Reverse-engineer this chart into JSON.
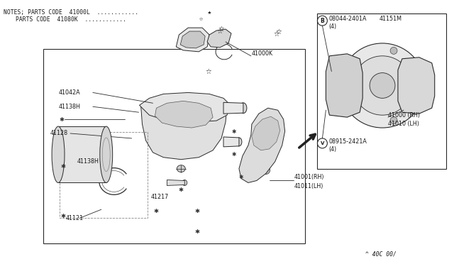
{
  "bg_color": "#ffffff",
  "text_color": "#1a1a1a",
  "line_color": "#2a2a2a",
  "notes_line1": "NOTES; PARTS CODE  41000L ............",
  "notes_star1": "★",
  "notes_line2": "       PARTS CODE  41080K ............",
  "notes_star2": "☆",
  "footer": "^ 40C 00/",
  "label_fs": 5.8,
  "lw": 0.7
}
